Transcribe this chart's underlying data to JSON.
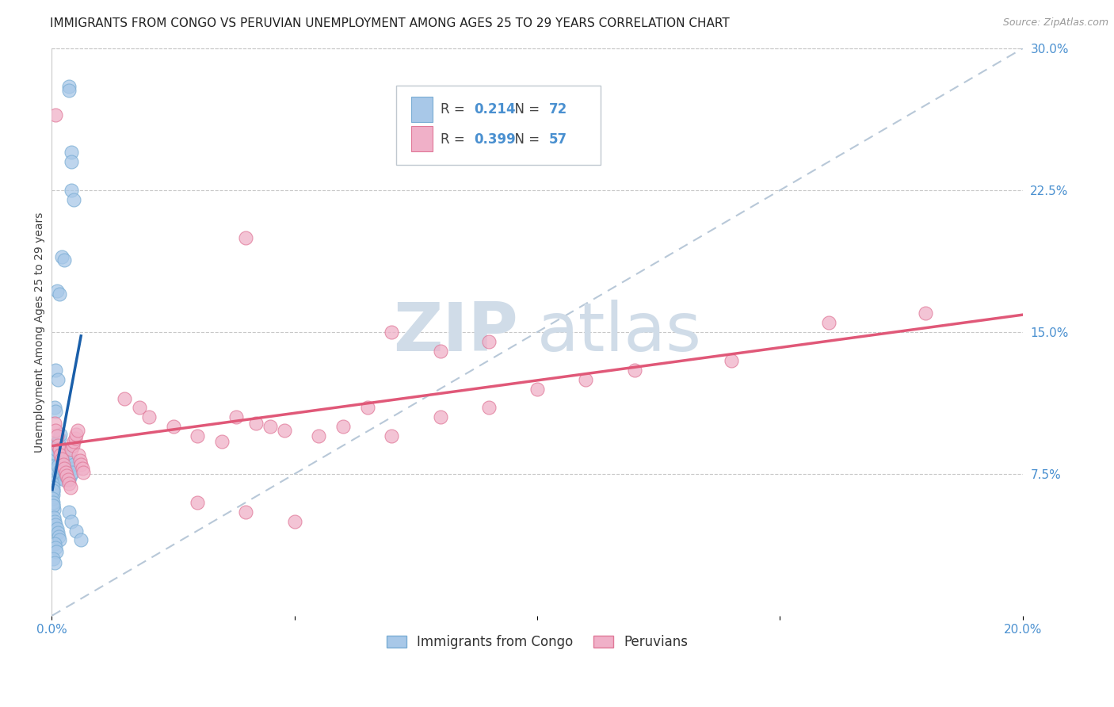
{
  "title": "IMMIGRANTS FROM CONGO VS PERUVIAN UNEMPLOYMENT AMONG AGES 25 TO 29 YEARS CORRELATION CHART",
  "source": "Source: ZipAtlas.com",
  "ylabel": "Unemployment Among Ages 25 to 29 years",
  "xlim": [
    0.0,
    0.2
  ],
  "ylim": [
    -0.02,
    0.32
  ],
  "ylim_data": [
    0.0,
    0.3
  ],
  "xticks": [
    0.0,
    0.05,
    0.1,
    0.15,
    0.2
  ],
  "xticklabels": [
    "0.0%",
    "",
    "",
    "",
    "20.0%"
  ],
  "yticks_right": [
    0.075,
    0.15,
    0.225,
    0.3
  ],
  "ytick_right_labels": [
    "7.5%",
    "15.0%",
    "22.5%",
    "30.0%"
  ],
  "grid_yticks": [
    0.075,
    0.15,
    0.225,
    0.3
  ],
  "blue_color": "#a8c8e8",
  "blue_edge_color": "#7aadd4",
  "pink_color": "#f0b0c8",
  "pink_edge_color": "#e07898",
  "blue_line_color": "#1a5faa",
  "pink_line_color": "#e05878",
  "ref_line_color": "#b8c8d8",
  "legend_blue_R": "0.214",
  "legend_blue_N": "72",
  "legend_pink_R": "0.399",
  "legend_pink_N": "57",
  "legend_label_blue": "Immigrants from Congo",
  "legend_label_pink": "Peruvians",
  "watermark_zip": "ZIP",
  "watermark_atlas": "atlas",
  "watermark_color": "#d0dce8",
  "title_fontsize": 11,
  "source_fontsize": 9,
  "axis_label_fontsize": 10,
  "tick_fontsize": 11,
  "legend_fontsize": 12
}
